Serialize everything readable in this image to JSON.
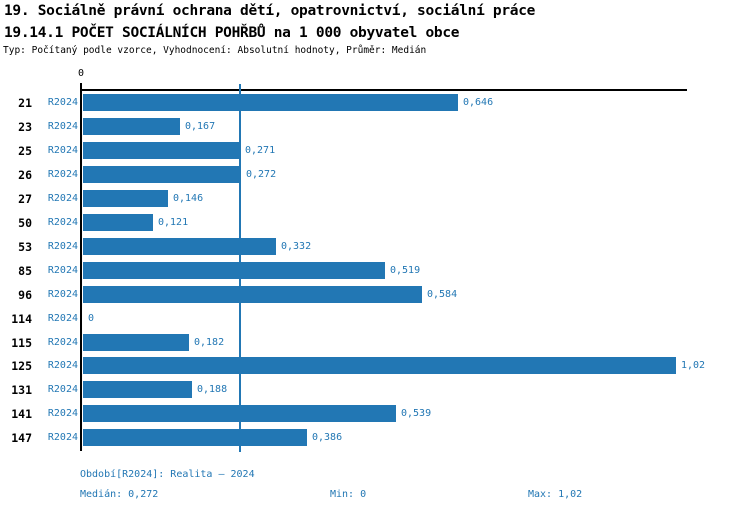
{
  "title_line1": "19. Sociálně právní ochrana dětí, opatrovnictví, sociální práce",
  "title_line2": "19.14.1 POČET SOCIÁLNÍCH POHŘBŮ na 1 000 obyvatel obce",
  "subtitle": "Typ: Počítaný podle vzorce, Vyhodnocení: Absolutní hodnoty, Průměr: Medián",
  "axis": {
    "zero_label": "0"
  },
  "colors": {
    "bar": "#2277b4",
    "text_blue": "#2277b4",
    "axis_black": "#000000"
  },
  "chart_data": {
    "type": "bar",
    "orientation": "horizontal",
    "title": "19.14.1 POČET SOCIÁLNÍCH POHŘBŮ na 1 000 obyvatel obce",
    "categories": [
      "21",
      "23",
      "25",
      "26",
      "27",
      "50",
      "53",
      "85",
      "96",
      "114",
      "115",
      "125",
      "131",
      "141",
      "147"
    ],
    "series": [
      {
        "name": "R2024",
        "values": [
          0.646,
          0.167,
          0.271,
          0.272,
          0.146,
          0.121,
          0.332,
          0.519,
          0.584,
          0,
          0.182,
          1.02,
          0.188,
          0.539,
          0.386
        ],
        "value_labels": [
          "0,646",
          "0,167",
          "0,271",
          "0,272",
          "0,146",
          "0,121",
          "0,332",
          "0,519",
          "0,584",
          "0",
          "0,182",
          "1,02",
          "0,188",
          "0,539",
          "0,386"
        ]
      }
    ],
    "xlim": [
      0,
      1.04
    ],
    "x_tick_labels": [
      "0"
    ],
    "median_reference_line": 0.272,
    "grid": false,
    "legend": false
  },
  "footer": {
    "period": "Období[R2024]: Realita – 2024",
    "median": "Medián: 0,272",
    "min": "Min: 0",
    "max": "Max: 1,02"
  }
}
